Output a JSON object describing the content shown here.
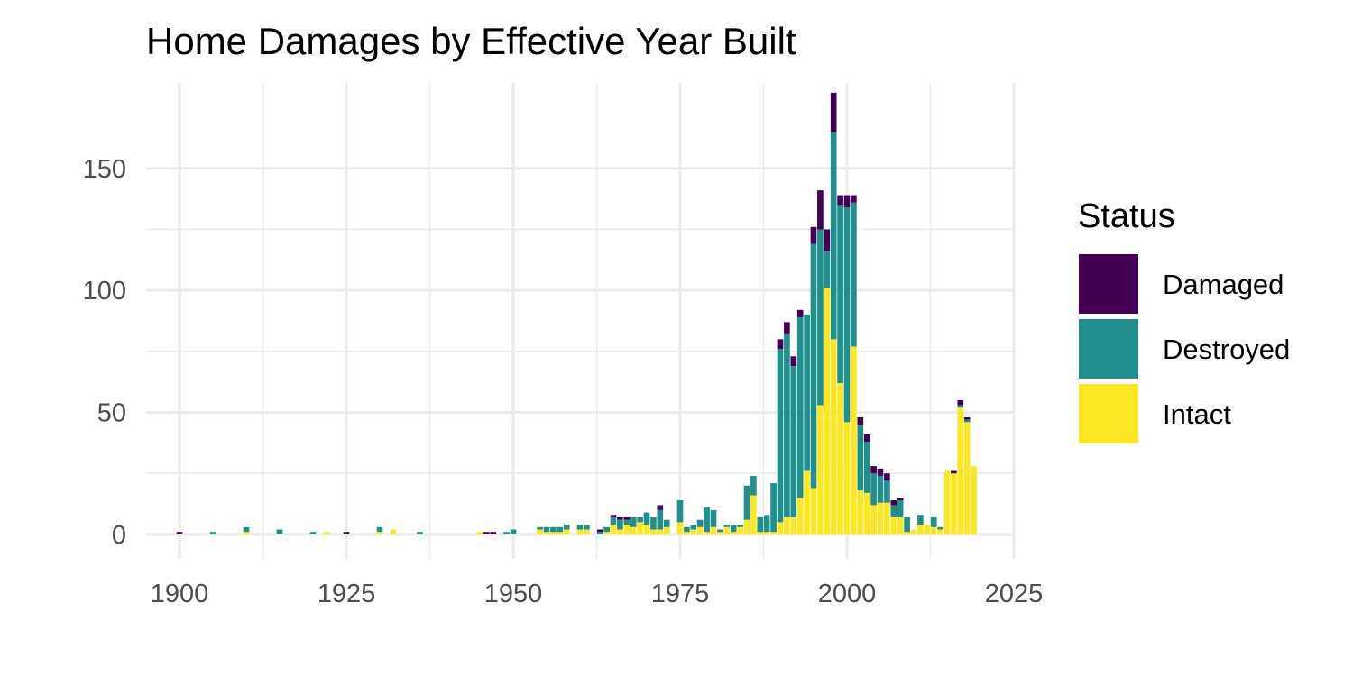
{
  "chart_data": {
    "type": "bar",
    "stacked": true,
    "title": "Home Damages by Effective Year Built",
    "xlabel": "",
    "ylabel": "",
    "xlim": [
      1895,
      2025
    ],
    "ylim": [
      -10,
      185
    ],
    "x_ticks": [
      1900,
      1925,
      1950,
      1975,
      2000,
      2025
    ],
    "y_ticks": [
      0,
      50,
      100,
      150
    ],
    "grid": true,
    "legend": {
      "title": "Status",
      "position": "right"
    },
    "colors": {
      "Damaged": "#440154",
      "Destroyed": "#21908C",
      "Intact": "#FDE725"
    },
    "series_order": [
      "Intact",
      "Destroyed",
      "Damaged"
    ],
    "x": [
      1900,
      1905,
      1910,
      1915,
      1920,
      1922,
      1925,
      1930,
      1932,
      1936,
      1945,
      1946,
      1947,
      1949,
      1950,
      1954,
      1955,
      1956,
      1957,
      1958,
      1960,
      1961,
      1963,
      1964,
      1965,
      1966,
      1967,
      1968,
      1969,
      1970,
      1971,
      1972,
      1973,
      1975,
      1976,
      1977,
      1978,
      1979,
      1980,
      1981,
      1982,
      1983,
      1984,
      1985,
      1986,
      1987,
      1988,
      1989,
      1990,
      1991,
      1992,
      1993,
      1994,
      1995,
      1996,
      1997,
      1998,
      1999,
      2000,
      2001,
      2002,
      2003,
      2004,
      2005,
      2006,
      2007,
      2008,
      2009,
      2010,
      2011,
      2012,
      2013,
      2014,
      2015,
      2016,
      2017,
      2018,
      2019
    ],
    "series": [
      {
        "name": "Intact",
        "values": [
          0,
          0,
          1,
          0,
          0,
          1,
          0,
          1,
          2,
          0,
          1,
          0,
          0,
          0,
          0,
          2,
          1,
          1,
          1,
          2,
          2,
          2,
          0,
          1,
          4,
          2,
          4,
          3,
          5,
          4,
          2,
          2,
          3,
          5,
          1,
          2,
          3,
          1,
          3,
          1,
          3,
          1,
          3,
          6,
          16,
          1,
          1,
          1,
          5,
          7,
          7,
          15,
          26,
          19,
          53,
          101,
          80,
          62,
          46,
          77,
          18,
          17,
          12,
          13,
          13,
          7,
          7,
          1,
          2,
          4,
          4,
          3,
          2,
          26,
          25,
          52,
          46,
          28
        ]
      },
      {
        "name": "Destroyed",
        "values": [
          0,
          1,
          2,
          2,
          1,
          0,
          0,
          2,
          0,
          1,
          0,
          0,
          0,
          1,
          2,
          1,
          2,
          2,
          2,
          2,
          2,
          2,
          1,
          2,
          3,
          4,
          2,
          4,
          2,
          5,
          5,
          8,
          3,
          9,
          2,
          2,
          3,
          10,
          7,
          1,
          1,
          3,
          1,
          14,
          8,
          6,
          7,
          20,
          71,
          75,
          62,
          74,
          64,
          100,
          72,
          15,
          85,
          73,
          88,
          59,
          27,
          21,
          13,
          11,
          9,
          5,
          7,
          6,
          0,
          4,
          0,
          4,
          1,
          0,
          0,
          1,
          1,
          0
        ]
      },
      {
        "name": "Damaged",
        "values": [
          1,
          0,
          0,
          0,
          0,
          0,
          1,
          0,
          0,
          0,
          0,
          1,
          1,
          0,
          0,
          0,
          0,
          0,
          0,
          0,
          0,
          0,
          1,
          0,
          1,
          1,
          1,
          0,
          0,
          0,
          0,
          2,
          0,
          0,
          0,
          0,
          0,
          0,
          0,
          0,
          0,
          0,
          0,
          0,
          0,
          0,
          0,
          0,
          4,
          5,
          4,
          3,
          0,
          7,
          16,
          9,
          16,
          4,
          5,
          3,
          3,
          3,
          3,
          3,
          3,
          2,
          1,
          0,
          0,
          0,
          0,
          0,
          0,
          0,
          1,
          2,
          1,
          0
        ]
      }
    ]
  }
}
